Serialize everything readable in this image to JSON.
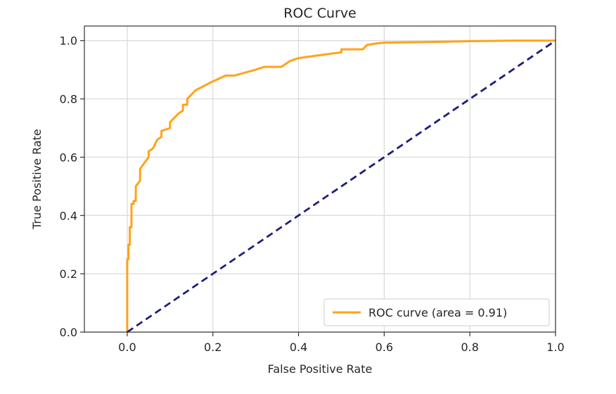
{
  "chart_data": {
    "type": "line",
    "title": "ROC Curve",
    "xlabel": "False Positive Rate",
    "ylabel": "True Positive Rate",
    "xlim": [
      -0.1,
      1.0
    ],
    "ylim": [
      0.0,
      1.05
    ],
    "xticks": [
      0.0,
      0.2,
      0.4,
      0.6,
      0.8,
      1.0
    ],
    "xtick_labels": [
      "0.0",
      "0.2",
      "0.4",
      "0.6",
      "0.8",
      "1.0"
    ],
    "yticks": [
      0.0,
      0.2,
      0.4,
      0.6,
      0.8,
      1.0
    ],
    "ytick_labels": [
      "0.0",
      "0.2",
      "0.4",
      "0.6",
      "0.8",
      "1.0"
    ],
    "grid": true,
    "legend_position": "lower right",
    "series": [
      {
        "name": "ROC curve (area = 0.91)",
        "color": "#ffa31a",
        "style": "solid",
        "x": [
          0.0,
          0.0,
          0.003,
          0.003,
          0.006,
          0.006,
          0.01,
          0.01,
          0.015,
          0.015,
          0.02,
          0.02,
          0.03,
          0.03,
          0.04,
          0.05,
          0.05,
          0.06,
          0.07,
          0.08,
          0.08,
          0.1,
          0.1,
          0.12,
          0.13,
          0.13,
          0.14,
          0.14,
          0.16,
          0.2,
          0.23,
          0.25,
          0.3,
          0.32,
          0.36,
          0.38,
          0.4,
          0.45,
          0.5,
          0.5,
          0.55,
          0.56,
          0.58,
          0.6,
          0.7,
          0.8,
          0.9,
          1.0
        ],
        "y": [
          0.0,
          0.25,
          0.25,
          0.3,
          0.3,
          0.36,
          0.36,
          0.44,
          0.44,
          0.45,
          0.45,
          0.5,
          0.52,
          0.56,
          0.58,
          0.6,
          0.62,
          0.63,
          0.66,
          0.67,
          0.69,
          0.7,
          0.72,
          0.75,
          0.76,
          0.78,
          0.78,
          0.8,
          0.83,
          0.86,
          0.88,
          0.88,
          0.9,
          0.91,
          0.91,
          0.93,
          0.94,
          0.95,
          0.96,
          0.97,
          0.97,
          0.985,
          0.99,
          0.993,
          0.995,
          0.998,
          1.0,
          1.0
        ]
      },
      {
        "color": "#1f1f7a",
        "style": "dashed",
        "x": [
          0.0,
          1.0
        ],
        "y": [
          0.0,
          1.0
        ]
      }
    ]
  }
}
